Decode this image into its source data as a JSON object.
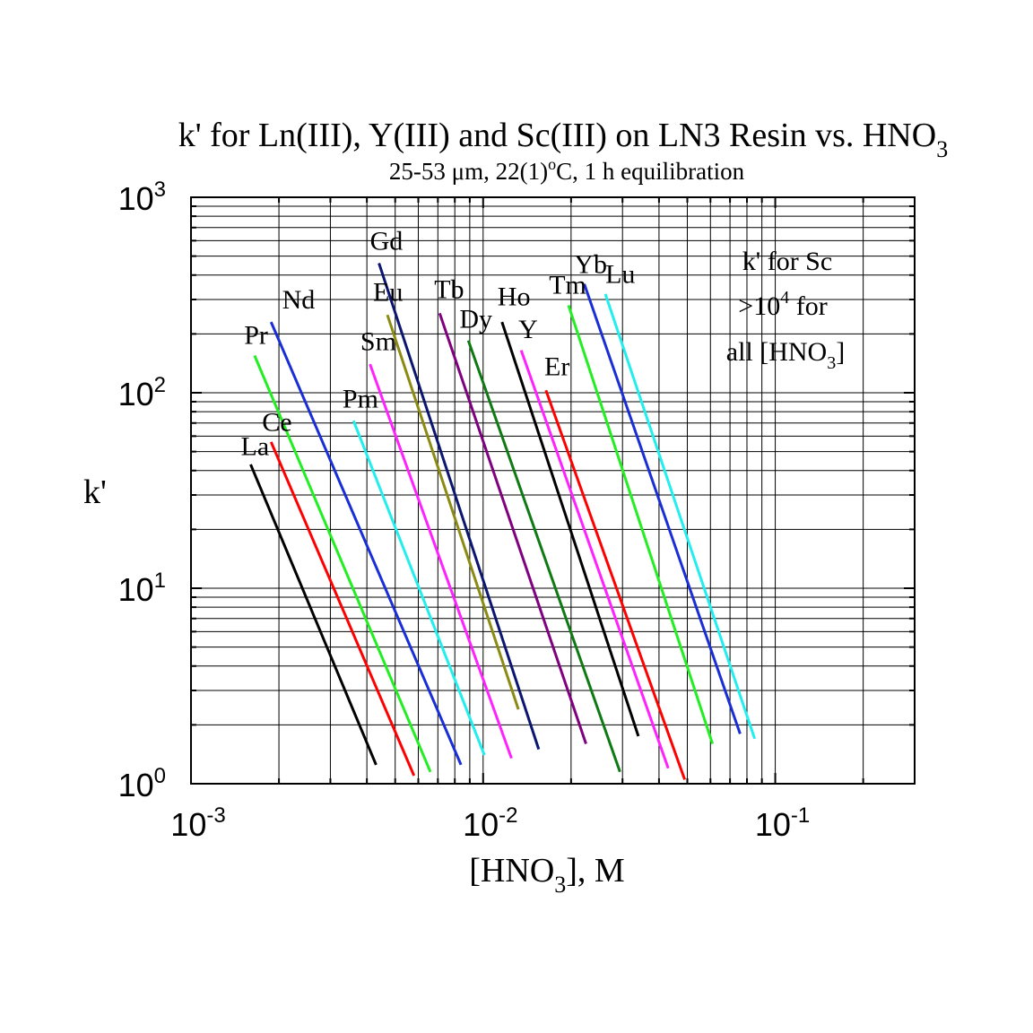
{
  "chart_data": {
    "type": "line",
    "title": "k' for Ln(III), Y(III) and Sc(III) on LN3 Resin vs. HNO",
    "title_sub": "3",
    "subtitle": "25-53 μm, 22(1)",
    "subtitle_sup": "o",
    "subtitle_tail": "C, 1 h equilibration",
    "xlabel": "[HNO",
    "xlabel_sub": "3",
    "xlabel_tail": "], M",
    "ylabel": "k'",
    "xscale": "log",
    "yscale": "log",
    "xlim": [
      0.001,
      0.3
    ],
    "ylim": [
      1,
      1000
    ],
    "grid": true,
    "x_ticks": [
      {
        "base": "10",
        "exp": "-3",
        "value": 0.001
      },
      {
        "base": "10",
        "exp": "-2",
        "value": 0.01
      },
      {
        "base": "10",
        "exp": "-1",
        "value": 0.1
      }
    ],
    "y_ticks": [
      {
        "base": "10",
        "exp": "0",
        "value": 1
      },
      {
        "base": "10",
        "exp": "1",
        "value": 10
      },
      {
        "base": "10",
        "exp": "2",
        "value": 100
      },
      {
        "base": "10",
        "exp": "3",
        "value": 1000
      }
    ],
    "annotation": {
      "line1": "k' for Sc",
      "line2_pre": ">10",
      "line2_sup": "4",
      "line2_post": " for",
      "line3_pre": "all [HNO",
      "line3_sub": "3",
      "line3_post": "]"
    },
    "series": [
      {
        "name": "La",
        "color": "#000000",
        "x": [
          0.0016,
          0.0043
        ],
        "y": [
          43,
          1.25
        ]
      },
      {
        "name": "Ce",
        "color": "#ff0000",
        "x": [
          0.00188,
          0.0058
        ],
        "y": [
          56,
          1.1
        ]
      },
      {
        "name": "Pr",
        "color": "#22ee22",
        "x": [
          0.00165,
          0.0066
        ],
        "y": [
          155,
          1.15
        ]
      },
      {
        "name": "Nd",
        "color": "#1a2ed6",
        "x": [
          0.00188,
          0.0084
        ],
        "y": [
          230,
          1.25
        ]
      },
      {
        "name": "Pm",
        "color": "#22eeee",
        "x": [
          0.0036,
          0.0101
        ],
        "y": [
          72,
          1.4
        ]
      },
      {
        "name": "Sm",
        "color": "#ff22ff",
        "x": [
          0.0041,
          0.0125
        ],
        "y": [
          140,
          1.35
        ]
      },
      {
        "name": "Eu",
        "color": "#8b8b14",
        "x": [
          0.0047,
          0.0132
        ],
        "y": [
          250,
          2.4
        ]
      },
      {
        "name": "Gd",
        "color": "#0a1670",
        "x": [
          0.0044,
          0.0155
        ],
        "y": [
          460,
          1.5
        ]
      },
      {
        "name": "Tb",
        "color": "#800080",
        "x": [
          0.0071,
          0.0225
        ],
        "y": [
          255,
          1.6
        ]
      },
      {
        "name": "Dy",
        "color": "#0f7a14",
        "x": [
          0.0089,
          0.0294
        ],
        "y": [
          185,
          1.15
        ]
      },
      {
        "name": "Ho",
        "color": "#000000",
        "x": [
          0.0116,
          0.034
        ],
        "y": [
          230,
          1.75
        ]
      },
      {
        "name": "Y",
        "color": "#ff22ff",
        "x": [
          0.0135,
          0.043
        ],
        "y": [
          165,
          1.2
        ]
      },
      {
        "name": "Er",
        "color": "#ff0000",
        "x": [
          0.0164,
          0.049
        ],
        "y": [
          103,
          1.05
        ]
      },
      {
        "name": "Tm",
        "color": "#22ee22",
        "x": [
          0.0196,
          0.061
        ],
        "y": [
          280,
          1.6
        ]
      },
      {
        "name": "Yb",
        "color": "#1a2ed6",
        "x": [
          0.0222,
          0.0758
        ],
        "y": [
          360,
          1.8
        ]
      },
      {
        "name": "Lu",
        "color": "#22eeee",
        "x": [
          0.0262,
          0.085
        ],
        "y": [
          320,
          1.7
        ]
      }
    ],
    "labels": [
      {
        "text": "La",
        "series": "La",
        "pos": [
          0.00148,
          48
        ]
      },
      {
        "text": "Ce",
        "series": "Ce",
        "pos": [
          0.00175,
          64
        ]
      },
      {
        "text": "Pr",
        "series": "Pr",
        "pos": [
          0.00152,
          178
        ]
      },
      {
        "text": "Nd",
        "series": "Nd",
        "pos": [
          0.00205,
          270
        ]
      },
      {
        "text": "Pm",
        "series": "Pm",
        "pos": [
          0.0033,
          84
        ]
      },
      {
        "text": "Sm",
        "series": "Sm",
        "pos": [
          0.0038,
          165
        ]
      },
      {
        "text": "Eu",
        "series": "Eu",
        "pos": [
          0.0042,
          295
        ]
      },
      {
        "text": "Gd",
        "series": "Gd",
        "pos": [
          0.0041,
          540
        ]
      },
      {
        "text": "Tb",
        "series": "Tb",
        "pos": [
          0.0068,
          305
        ]
      },
      {
        "text": "Dy",
        "series": "Dy",
        "pos": [
          0.0083,
          215
        ]
      },
      {
        "text": "Ho",
        "series": "Ho",
        "pos": [
          0.0112,
          280
        ]
      },
      {
        "text": "Y",
        "series": "Y",
        "pos": [
          0.0132,
          190
        ]
      },
      {
        "text": "Er",
        "series": "Er",
        "pos": [
          0.0162,
          123
        ]
      },
      {
        "text": "Tm",
        "series": "Tm",
        "pos": [
          0.0168,
          322
        ]
      },
      {
        "text": "Yb",
        "series": "Yb",
        "pos": [
          0.0205,
          410
        ]
      },
      {
        "text": "Lu",
        "series": "Lu",
        "pos": [
          0.0262,
          365
        ]
      }
    ]
  }
}
